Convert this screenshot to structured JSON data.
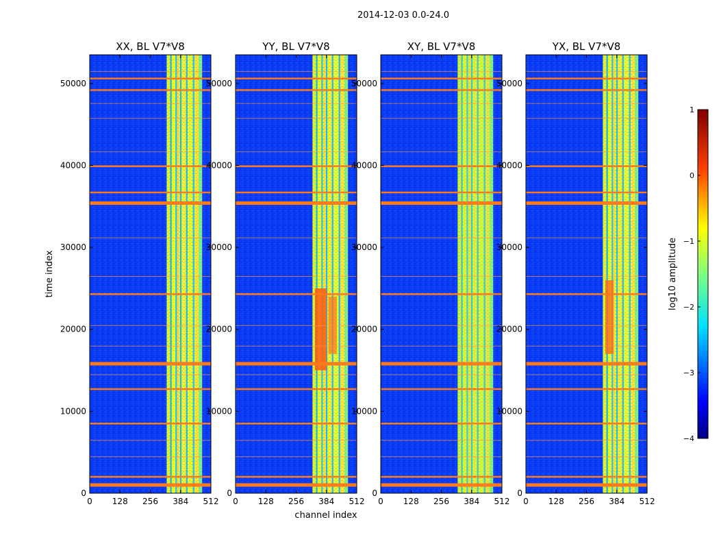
{
  "figure": {
    "suptitle": "2014-12-03 0.0-24.0",
    "ylabel": "time index",
    "xlabel": "channel index"
  },
  "chart_data": [
    {
      "type": "heatmap",
      "title": "XX, BL V7*V8",
      "x_range": [
        0,
        512
      ],
      "y_range": [
        0,
        53500
      ],
      "x_ticks": [
        0,
        128,
        256,
        384,
        512
      ],
      "y_ticks": [
        0,
        10000,
        20000,
        30000,
        40000,
        50000
      ],
      "bright_band_channels": [
        325,
        475
      ],
      "flag_rows_time_index": [
        1000,
        2000,
        8500,
        12700,
        15800,
        24300,
        35400,
        36700,
        39900,
        49200,
        50600
      ],
      "notes": "strong amplitude in channels ~325-475 with narrow gaps; background ~ -3 log amplitude"
    },
    {
      "type": "heatmap",
      "title": "YY, BL V7*V8",
      "x_range": [
        0,
        512
      ],
      "y_range": [
        0,
        53500
      ],
      "x_ticks": [
        0,
        128,
        256,
        384,
        512
      ],
      "y_ticks": [
        0,
        10000,
        20000,
        30000,
        40000,
        50000
      ],
      "bright_band_channels": [
        325,
        475
      ],
      "flag_rows_time_index": [
        1000,
        2000,
        8500,
        12700,
        15800,
        24300,
        35400,
        36700,
        39900,
        49200,
        50600
      ],
      "notes": "hot region near time 15000-25000 in channels ~330-430"
    },
    {
      "type": "heatmap",
      "title": "XY, BL V7*V8",
      "x_range": [
        0,
        512
      ],
      "y_range": [
        0,
        53500
      ],
      "x_ticks": [
        0,
        128,
        256,
        384,
        512
      ],
      "y_ticks": [
        0,
        10000,
        20000,
        30000,
        40000,
        50000
      ],
      "bright_band_channels": [
        325,
        475
      ],
      "flag_rows_time_index": [
        1000,
        2000,
        8500,
        12700,
        15800,
        24300,
        35400,
        36700,
        39900,
        49200,
        50600
      ],
      "notes": "weaker band amplitude"
    },
    {
      "type": "heatmap",
      "title": "YX, BL V7*V8",
      "x_range": [
        0,
        512
      ],
      "y_range": [
        0,
        53500
      ],
      "x_ticks": [
        0,
        128,
        256,
        384,
        512
      ],
      "y_ticks": [
        0,
        10000,
        20000,
        30000,
        40000,
        50000
      ],
      "bright_band_channels": [
        325,
        475
      ],
      "flag_rows_time_index": [
        1000,
        2000,
        8500,
        12700,
        15800,
        24300,
        35400,
        36700,
        39900,
        49200,
        50600
      ],
      "notes": "hot region near time 15000-26000 in channels ~330-400"
    }
  ],
  "colorbar": {
    "label": "log10 amplitude",
    "range": [
      -4,
      1
    ],
    "ticks": [
      1,
      0,
      -1,
      -2,
      -3,
      -4
    ],
    "colormap": "jet"
  },
  "colors": {
    "jet_low": "#00007f",
    "jet_background": "#0a3cf5",
    "jet_mid": "#7fff7f",
    "jet_yellow": "#f0ff10",
    "jet_orange": "#ff8000",
    "jet_high": "#7f0000"
  }
}
